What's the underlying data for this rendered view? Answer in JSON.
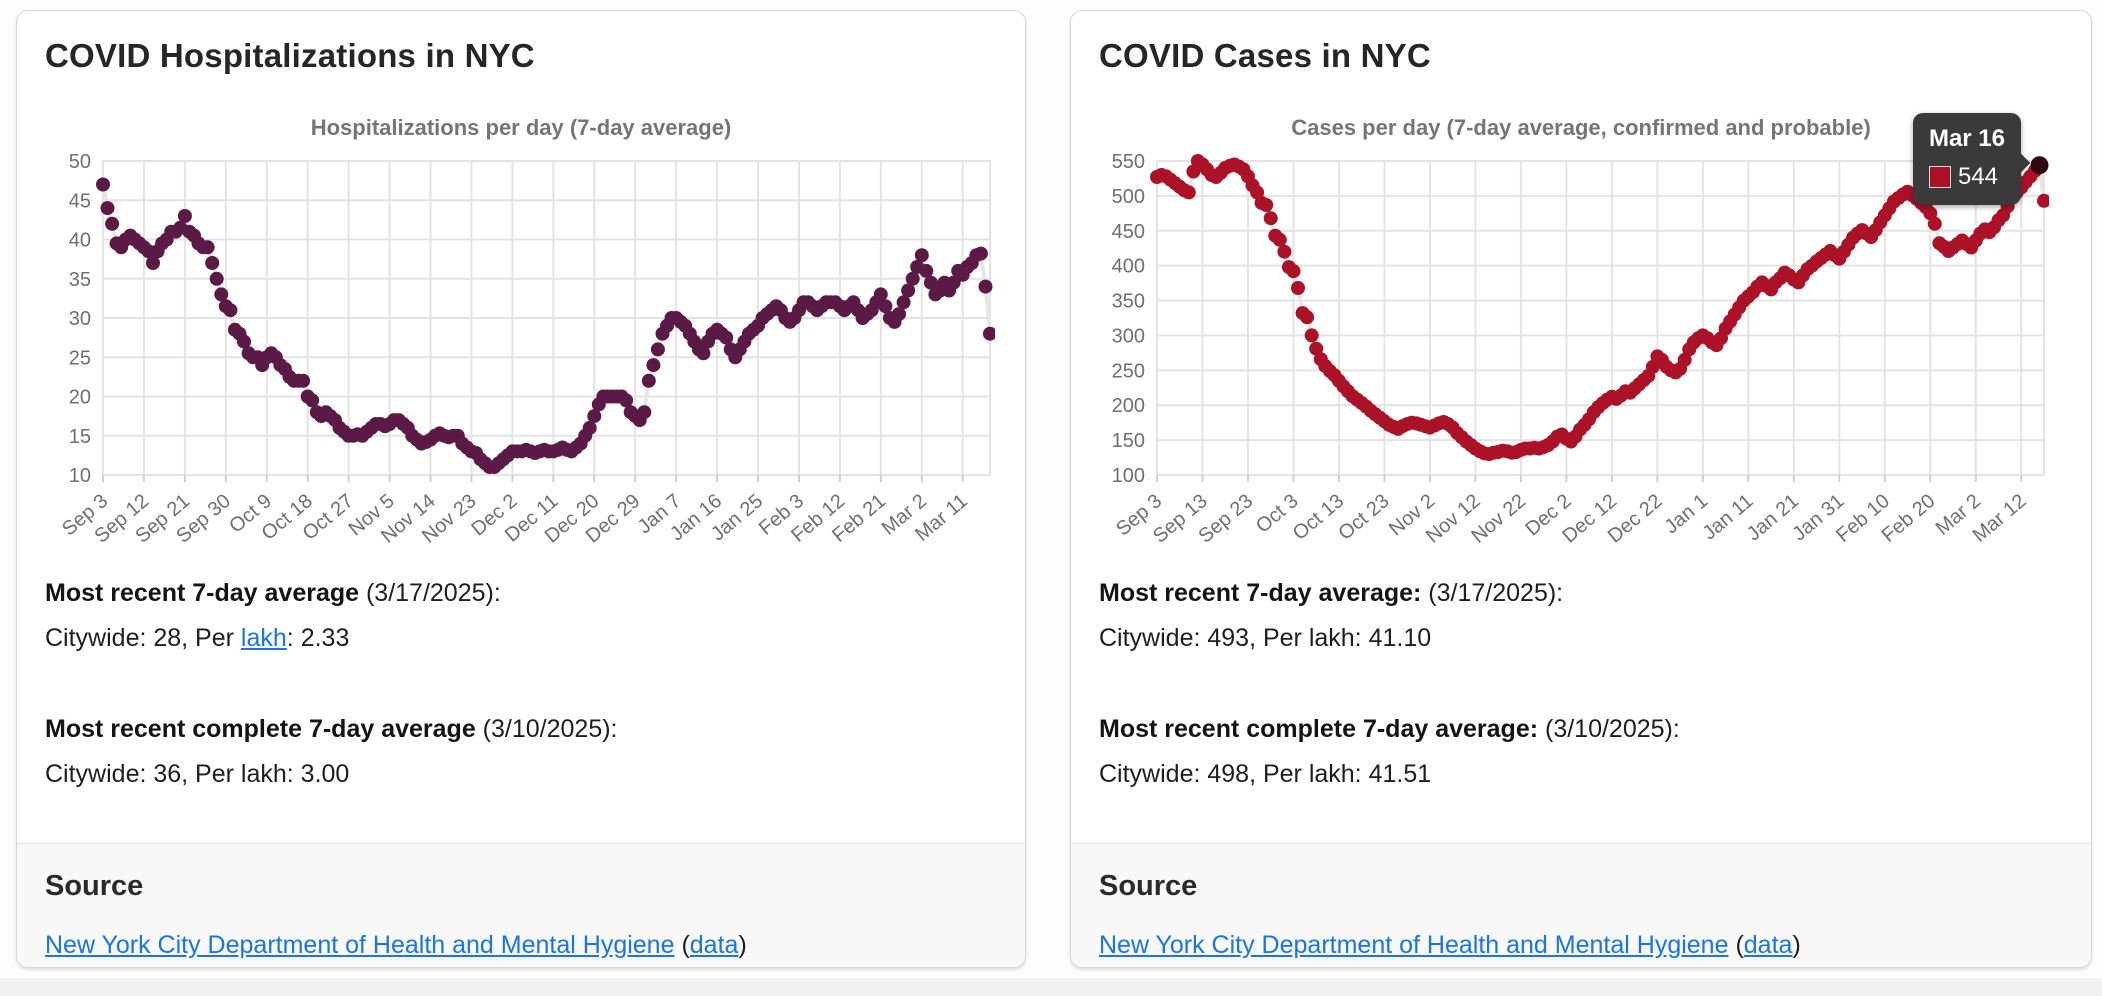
{
  "cards": [
    {
      "title": "COVID Hospitalizations in NYC",
      "chart_title": "Hospitalizations per day (7-day average)",
      "stats": [
        {
          "title": [
            {
              "t": "Most recent 7-day average",
              "b": true
            },
            {
              "t": " (3/17/2025):"
            }
          ],
          "value": [
            {
              "t": "Citywide: 28, Per "
            },
            {
              "t": "lakh",
              "link": true,
              "name": "lakh-link"
            },
            {
              "t": ": 2.33"
            }
          ]
        },
        {
          "title": [
            {
              "t": "Most recent complete 7-day average",
              "b": true
            },
            {
              "t": " (3/10/2025):"
            }
          ],
          "value": [
            {
              "t": "Citywide: 36, Per lakh: 3.00"
            }
          ]
        }
      ],
      "source": {
        "heading": "Source",
        "line": [
          {
            "t": "New York City Department of Health and Mental Hygiene",
            "link": true,
            "name": "source-link"
          },
          {
            "t": " ("
          },
          {
            "t": "data",
            "link": true,
            "name": "data-link"
          },
          {
            "t": ")"
          }
        ]
      }
    },
    {
      "title": "COVID Cases in NYC",
      "chart_title": "Cases per day (7-day average, confirmed and probable)",
      "tooltip": {
        "date": "Mar 16",
        "value": "544",
        "swatch_color": "#ab1228"
      },
      "stats": [
        {
          "title": [
            {
              "t": "Most recent 7-day average:",
              "b": true
            },
            {
              "t": " (3/17/2025):"
            }
          ],
          "value": [
            {
              "t": "Citywide: 493, Per lakh: 41.10"
            }
          ]
        },
        {
          "title": [
            {
              "t": "Most recent complete 7-day average:",
              "b": true
            },
            {
              "t": " (3/10/2025):"
            }
          ],
          "value": [
            {
              "t": "Citywide: 498, Per lakh: 41.51"
            }
          ]
        }
      ],
      "source": {
        "heading": "Source",
        "line": [
          {
            "t": "New York City Department of Health and Mental Hygiene",
            "link": true,
            "name": "source-link"
          },
          {
            "t": " ("
          },
          {
            "t": "data",
            "link": true,
            "name": "data-link"
          },
          {
            "t": ")"
          }
        ]
      }
    }
  ],
  "chart_data": [
    {
      "type": "scatter",
      "title": "Hospitalizations per day (7-day average)",
      "x_start_label": "Sep 3",
      "x_end_label": "Mar 17",
      "cadence": "daily",
      "ylim": [
        10,
        50
      ],
      "y_ticks": [
        10,
        15,
        20,
        25,
        30,
        35,
        40,
        45,
        50
      ],
      "x_tick_indices": [
        0,
        9,
        18,
        27,
        36,
        45,
        54,
        63,
        72,
        81,
        90,
        99,
        108,
        117,
        126,
        135,
        144,
        153,
        162,
        171,
        180,
        189
      ],
      "x_tick_labels": [
        "Sep 3",
        "Sep 12",
        "Sep 21",
        "Sep 30",
        "Oct 9",
        "Oct 18",
        "Oct 27",
        "Nov 5",
        "Nov 14",
        "Nov 23",
        "Dec 2",
        "Dec 11",
        "Dec 20",
        "Dec 29",
        "Jan 7",
        "Jan 16",
        "Jan 25",
        "Feb 3",
        "Feb 12",
        "Feb 21",
        "Mar 2",
        "Mar 11"
      ],
      "point_color": "#5b1a46",
      "line_color": "#e6e6e6",
      "grid": true,
      "legend": "none",
      "values": [
        47,
        44,
        42,
        39.5,
        39,
        40,
        40.5,
        40,
        39.5,
        39,
        38.5,
        37,
        38.5,
        39.5,
        40,
        41,
        41,
        41.5,
        43,
        41,
        40.5,
        39.5,
        39,
        39,
        37,
        35,
        33,
        31.5,
        31,
        28.5,
        28,
        27,
        25.5,
        25,
        25,
        24,
        25,
        25.5,
        25,
        24,
        23.5,
        22.5,
        22,
        22,
        22,
        20,
        19.5,
        18,
        17.5,
        18,
        17.5,
        17,
        16,
        15.5,
        15,
        15,
        15.2,
        15,
        15.5,
        16,
        16.5,
        16.5,
        16.2,
        16.5,
        17,
        17,
        16.5,
        16,
        15,
        14.5,
        14,
        14.2,
        14.5,
        15,
        15.3,
        15,
        14.8,
        15,
        15,
        14,
        13.5,
        13,
        12.8,
        12,
        11.5,
        11,
        11,
        11.5,
        12,
        12.5,
        13,
        13,
        13,
        13.2,
        13,
        12.8,
        13,
        13.2,
        13,
        13,
        13.2,
        13.5,
        13.2,
        13,
        13.5,
        14,
        15,
        16,
        17.5,
        19,
        20,
        20,
        20,
        20,
        20,
        19.5,
        18,
        17.5,
        17,
        18,
        22,
        24,
        26,
        28,
        29,
        30,
        30,
        29.5,
        29,
        28,
        27,
        26,
        25.5,
        27,
        28,
        28.5,
        28,
        27.5,
        26,
        25,
        26,
        27,
        28,
        28.5,
        29,
        30,
        30.5,
        31,
        31.5,
        31,
        30,
        29.5,
        30,
        31,
        32,
        32,
        31.5,
        31,
        31.5,
        32,
        32,
        32,
        31.5,
        31,
        31.5,
        32,
        31,
        30,
        30.5,
        31,
        32,
        33,
        31.5,
        30,
        29.5,
        30.5,
        32,
        33.5,
        35,
        36.5,
        38,
        36,
        34.5,
        33,
        33.5,
        34.5,
        33.5,
        34.5,
        36,
        35.5,
        36.5,
        37,
        38,
        38.2,
        34,
        28
      ]
    },
    {
      "type": "scatter",
      "title": "Cases per day (7-day average, confirmed and probable)",
      "x_start_label": "Sep 3",
      "x_end_label": "Mar 17",
      "cadence": "daily",
      "ylim": [
        100,
        550
      ],
      "y_ticks": [
        100,
        150,
        200,
        250,
        300,
        350,
        400,
        450,
        500,
        550
      ],
      "x_tick_indices": [
        0,
        10,
        20,
        30,
        40,
        50,
        60,
        70,
        80,
        90,
        100,
        110,
        120,
        130,
        140,
        150,
        160,
        170,
        180,
        190
      ],
      "x_tick_labels": [
        "Sep 3",
        "Sep 13",
        "Sep 23",
        "Oct 3",
        "Oct 13",
        "Oct 23",
        "Nov 2",
        "Nov 12",
        "Nov 22",
        "Dec 2",
        "Dec 12",
        "Dec 22",
        "Jan 1",
        "Jan 11",
        "Jan 21",
        "Jan 31",
        "Feb 10",
        "Feb 20",
        "Mar 2",
        "Mar 12"
      ],
      "point_color": "#ab1228",
      "line_color": "#e6e6e6",
      "grid": true,
      "legend": "none",
      "highlight": {
        "index": 194,
        "date": "Mar 16",
        "value": 544,
        "color": "#2f0512"
      },
      "values": [
        527,
        530,
        528,
        523,
        518,
        513,
        508,
        505,
        535,
        550,
        545,
        538,
        530,
        527,
        533,
        540,
        543,
        545,
        542,
        538,
        528,
        515,
        505,
        490,
        487,
        468,
        443,
        437,
        420,
        398,
        392,
        368,
        332,
        326,
        300,
        281,
        266,
        256,
        249,
        243,
        235,
        227,
        220,
        213,
        208,
        203,
        198,
        192,
        187,
        182,
        177,
        172,
        169,
        166,
        170,
        173,
        175,
        174,
        172,
        170,
        168,
        171,
        174,
        176,
        173,
        168,
        160,
        154,
        148,
        143,
        138,
        134,
        131,
        130,
        132,
        133,
        135,
        134,
        132,
        133,
        136,
        138,
        138,
        139,
        138,
        140,
        143,
        148,
        155,
        158,
        152,
        148,
        155,
        165,
        172,
        180,
        190,
        197,
        203,
        208,
        212,
        209,
        214,
        220,
        218,
        224,
        230,
        236,
        242,
        255,
        270,
        265,
        255,
        250,
        247,
        252,
        265,
        280,
        290,
        296,
        300,
        296,
        290,
        286,
        296,
        310,
        320,
        330,
        340,
        350,
        356,
        362,
        370,
        376,
        371,
        366,
        376,
        382,
        390,
        386,
        380,
        376,
        386,
        395,
        400,
        406,
        411,
        416,
        421,
        415,
        410,
        420,
        430,
        440,
        446,
        451,
        446,
        441,
        451,
        462,
        472,
        482,
        492,
        497,
        502,
        506,
        501,
        496,
        490,
        484,
        475,
        460,
        432,
        427,
        421,
        426,
        431,
        436,
        431,
        426,
        436,
        446,
        452,
        448,
        455,
        465,
        472,
        485,
        498,
        505,
        512,
        520,
        528,
        536,
        544,
        493
      ]
    }
  ]
}
